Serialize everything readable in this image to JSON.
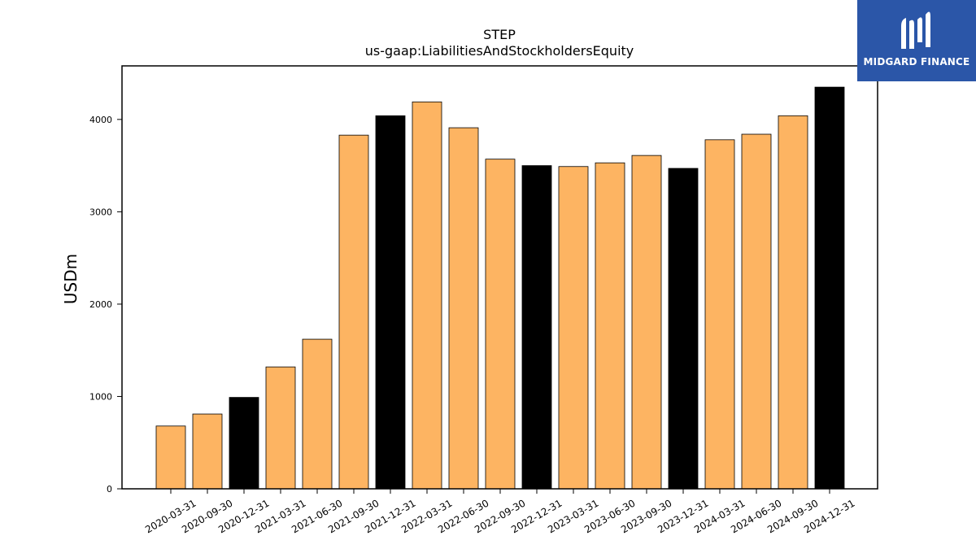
{
  "chart_data": {
    "type": "bar",
    "title": "STEP",
    "subtitle": "us-gaap:LiabilitiesAndStockholdersEquity",
    "xlabel": "",
    "ylabel": "USDm",
    "ylim": [
      0,
      4580
    ],
    "yticks": [
      0,
      1000,
      2000,
      3000,
      4000
    ],
    "grid": false,
    "categories": [
      "2020-03-31",
      "2020-09-30",
      "2020-12-31",
      "2021-03-31",
      "2021-06-30",
      "2021-09-30",
      "2021-12-31",
      "2022-03-31",
      "2022-06-30",
      "2022-09-30",
      "2022-12-31",
      "2023-03-31",
      "2023-06-30",
      "2023-09-30",
      "2023-12-31",
      "2024-03-31",
      "2024-06-30",
      "2024-09-30",
      "2024-12-31"
    ],
    "values": [
      680,
      810,
      990,
      1320,
      1620,
      3830,
      4040,
      4190,
      3910,
      3570,
      3500,
      3490,
      3530,
      3610,
      3470,
      3780,
      3840,
      4040,
      4350
    ],
    "highlighted": [
      false,
      false,
      true,
      false,
      false,
      false,
      true,
      false,
      false,
      false,
      true,
      false,
      false,
      false,
      true,
      false,
      false,
      false,
      true
    ],
    "colors": {
      "default": "#fdb462",
      "highlight": "#000000",
      "edge": "#000000"
    }
  },
  "logo": {
    "text": "MIDGARD FINANCE",
    "bg": "#2b56a8"
  }
}
